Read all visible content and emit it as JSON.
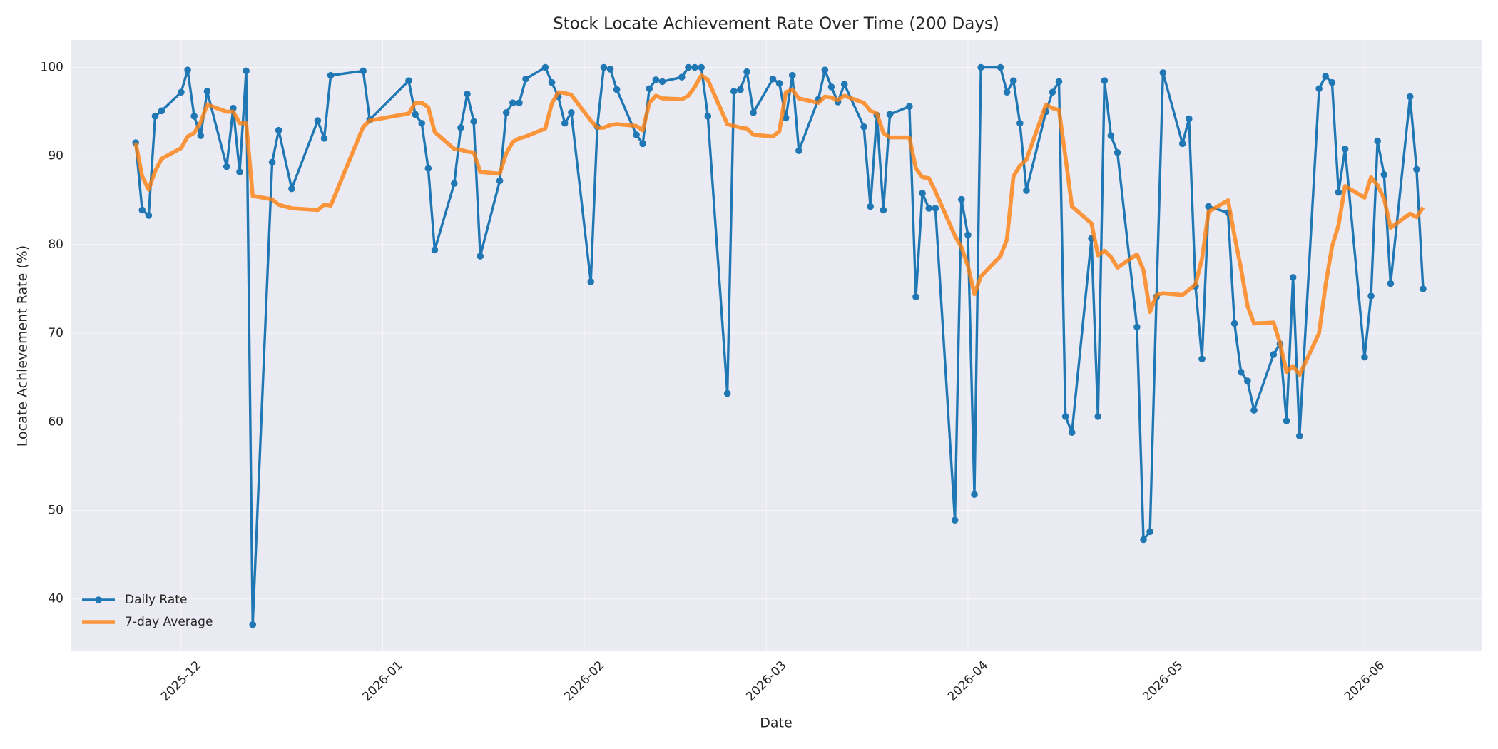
{
  "chart_data": {
    "type": "line",
    "title": "Stock Locate Achievement Rate Over Time (200 Days)",
    "x_label": "Date",
    "y_label": "Locate Achievement Rate (%)",
    "x": [
      "2025-11-24",
      "2025-11-25",
      "2025-11-26",
      "2025-11-27",
      "2025-11-28",
      "2025-12-01",
      "2025-12-02",
      "2025-12-03",
      "2025-12-04",
      "2025-12-05",
      "2025-12-08",
      "2025-12-09",
      "2025-12-10",
      "2025-12-11",
      "2025-12-12",
      "2025-12-15",
      "2025-12-16",
      "2025-12-18",
      "2025-12-22",
      "2025-12-23",
      "2025-12-24",
      "2025-12-29",
      "2025-12-30",
      "2026-01-05",
      "2026-01-06",
      "2026-01-07",
      "2026-01-08",
      "2026-01-09",
      "2026-01-12",
      "2026-01-13",
      "2026-01-14",
      "2026-01-15",
      "2026-01-16",
      "2026-01-19",
      "2026-01-20",
      "2026-01-21",
      "2026-01-22",
      "2026-01-23",
      "2026-01-26",
      "2026-01-27",
      "2026-01-28",
      "2026-01-29",
      "2026-01-30",
      "2026-02-02",
      "2026-02-03",
      "2026-02-04",
      "2026-02-05",
      "2026-02-06",
      "2026-02-09",
      "2026-02-10",
      "2026-02-11",
      "2026-02-12",
      "2026-02-13",
      "2026-02-16",
      "2026-02-17",
      "2026-02-18",
      "2026-02-19",
      "2026-02-20",
      "2026-02-23",
      "2026-02-24",
      "2026-02-25",
      "2026-02-26",
      "2026-02-27",
      "2026-03-02",
      "2026-03-03",
      "2026-03-04",
      "2026-03-05",
      "2026-03-06",
      "2026-03-09",
      "2026-03-10",
      "2026-03-11",
      "2026-03-12",
      "2026-03-13",
      "2026-03-16",
      "2026-03-17",
      "2026-03-18",
      "2026-03-19",
      "2026-03-20",
      "2026-03-23",
      "2026-03-24",
      "2026-03-25",
      "2026-03-26",
      "2026-03-27",
      "2026-03-30",
      "2026-03-31",
      "2026-04-01",
      "2026-04-02",
      "2026-04-03",
      "2026-04-06",
      "2026-04-07",
      "2026-04-08",
      "2026-04-09",
      "2026-04-10",
      "2026-04-13",
      "2026-04-14",
      "2026-04-15",
      "2026-04-16",
      "2026-04-17",
      "2026-04-20",
      "2026-04-21",
      "2026-04-22",
      "2026-04-23",
      "2026-04-24",
      "2026-04-27",
      "2026-04-28",
      "2026-04-29",
      "2026-04-30",
      "2026-05-01",
      "2026-05-04",
      "2026-05-05",
      "2026-05-06",
      "2026-05-07",
      "2026-05-08",
      "2026-05-11",
      "2026-05-12",
      "2026-05-13",
      "2026-05-14",
      "2026-05-15",
      "2026-05-18",
      "2026-05-19",
      "2026-05-20",
      "2026-05-21",
      "2026-05-22",
      "2026-05-25",
      "2026-05-26",
      "2026-05-27",
      "2026-05-28",
      "2026-05-29",
      "2026-06-01",
      "2026-06-02",
      "2026-06-03",
      "2026-06-04",
      "2026-06-05",
      "2026-06-08",
      "2026-06-09",
      "2026-06-10"
    ],
    "series": [
      {
        "name": "Daily Rate",
        "color": "#1f77b4",
        "marker": true,
        "values": [
          91.5,
          83.9,
          83.3,
          94.5,
          95.1,
          97.2,
          99.7,
          94.5,
          92.3,
          97.3,
          88.8,
          95.4,
          88.2,
          99.6,
          37.1,
          89.3,
          92.9,
          86.3,
          94.0,
          92.0,
          99.1,
          99.6,
          94.1,
          98.5,
          94.7,
          93.7,
          88.6,
          79.4,
          86.9,
          93.2,
          97.0,
          93.9,
          78.7,
          87.2,
          94.9,
          96.0,
          96.0,
          98.7,
          100,
          98.3,
          96.7,
          93.7,
          94.9,
          75.8,
          93.3,
          100,
          99.8,
          97.5,
          92.4,
          91.4,
          97.6,
          98.6,
          98.4,
          98.9,
          100,
          100,
          100,
          94.5,
          63.2,
          97.3,
          97.5,
          99.5,
          94.9,
          98.7,
          98.2,
          94.3,
          99.1,
          90.6,
          96.4,
          99.7,
          97.8,
          96.1,
          98.1,
          93.3,
          84.3,
          94.6,
          83.9,
          94.7,
          95.6,
          74.1,
          85.8,
          84.1,
          84.1,
          48.9,
          85.1,
          81.1,
          51.8,
          100,
          100,
          97.2,
          98.5,
          93.7,
          86.1,
          95.0,
          97.2,
          98.4,
          60.6,
          58.8,
          80.7,
          60.6,
          98.5,
          92.3,
          90.4,
          70.7,
          46.7,
          47.6,
          74.1,
          99.4,
          91.4,
          94.2,
          75.3,
          67.1,
          84.3,
          83.6,
          71.1,
          65.6,
          64.6,
          61.3,
          67.6,
          68.8,
          60.1,
          76.3,
          58.4,
          97.6,
          99.0,
          98.3,
          85.9,
          90.8,
          67.3,
          74.2,
          91.7,
          87.9,
          75.6,
          96.7,
          88.5,
          75.0
        ]
      },
      {
        "name": "7-day Average",
        "color": "#ff7f0e",
        "marker": false,
        "values": [
          91.5,
          87.7,
          86.2,
          88.3,
          89.7,
          90.9,
          92.2,
          92.6,
          93.8,
          95.8,
          95.0,
          95.0,
          93.7,
          93.7,
          85.5,
          85.1,
          84.5,
          84.1,
          83.9,
          84.5,
          84.4,
          93.3,
          94.0,
          94.8,
          96.0,
          96.0,
          95.5,
          92.7,
          90.8,
          90.7,
          90.5,
          90.4,
          88.2,
          88.0,
          90.3,
          91.6,
          92.0,
          92.2,
          93.1,
          95.9,
          97.2,
          97.1,
          96.9,
          94.0,
          93.2,
          93.2,
          93.5,
          93.6,
          93.4,
          92.9,
          96.0,
          96.8,
          96.5,
          96.4,
          96.8,
          97.8,
          99.1,
          98.6,
          93.6,
          93.4,
          93.2,
          93.1,
          92.4,
          92.2,
          92.8,
          97.2,
          97.5,
          96.5,
          96.0,
          96.7,
          96.6,
          96.3,
          96.8,
          96.0,
          95.1,
          94.8,
          92.6,
          92.1,
          92.1,
          88.6,
          87.6,
          87.5,
          86.0,
          81.0,
          79.7,
          77.6,
          74.4,
          76.4,
          78.7,
          80.6,
          87.7,
          88.9,
          89.6,
          95.8,
          95.4,
          95.2,
          89.9,
          84.3,
          82.4,
          78.8,
          79.3,
          78.6,
          77.4,
          78.9,
          77.1,
          72.4,
          74.3,
          74.5,
          74.3,
          74.9,
          75.5,
          78.4,
          83.7,
          85.0,
          81.0,
          77.3,
          73.1,
          71.1,
          71.2,
          68.9,
          65.6,
          66.3,
          65.3,
          70.0,
          75.4,
          79.8,
          82.2,
          86.6,
          85.3,
          87.6,
          86.7,
          85.2,
          81.9,
          83.5,
          83.1,
          84.2
        ]
      }
    ],
    "xlim": [
      "2025-11-14",
      "2026-06-19"
    ],
    "xticks": [
      "2025-12",
      "2026-01",
      "2026-02",
      "2026-03",
      "2026-04",
      "2026-05",
      "2026-06"
    ],
    "ylim": [
      34.1,
      103.1
    ],
    "yticks": [
      40,
      50,
      60,
      70,
      80,
      90,
      100
    ],
    "grid": true,
    "legend": "lower left"
  }
}
